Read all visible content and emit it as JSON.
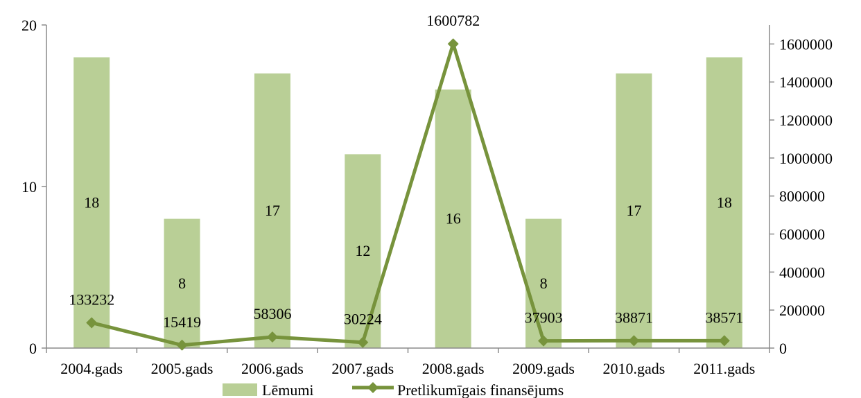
{
  "chart_data": {
    "type": "bar",
    "categories": [
      "2004.gads",
      "2005.gads",
      "2006.gads",
      "2007.gads",
      "2008.gads",
      "2009.gads",
      "2010.gads",
      "2011.gads"
    ],
    "series": [
      {
        "name": "Lēmumi",
        "type": "bar",
        "axis": "left",
        "color": "#b9cf96",
        "values": [
          18,
          8,
          17,
          12,
          16,
          8,
          17,
          18
        ],
        "labels": [
          "18",
          "8",
          "17",
          "12",
          "16",
          "8",
          "17",
          "18"
        ]
      },
      {
        "name": "Pretlikumīgais finansējums",
        "type": "line",
        "axis": "right",
        "color": "#77933c",
        "marker": "diamond",
        "values": [
          133232,
          15419,
          58306,
          30224,
          1600782,
          37903,
          38871,
          38571
        ],
        "labels": [
          "133232",
          "15419",
          "58306",
          "30224",
          "1600782",
          "37903",
          "38871",
          "38571"
        ]
      }
    ],
    "y_left": {
      "min": 0,
      "max": 20,
      "ticks": [
        "0",
        "10",
        "20"
      ]
    },
    "y_right": {
      "min": 0,
      "max": 1700000,
      "ticks": [
        "0",
        "200000",
        "400000",
        "600000",
        "800000",
        "1000000",
        "1200000",
        "1400000",
        "1600000"
      ]
    },
    "legend": {
      "placement": "bottom"
    },
    "grid": false
  }
}
